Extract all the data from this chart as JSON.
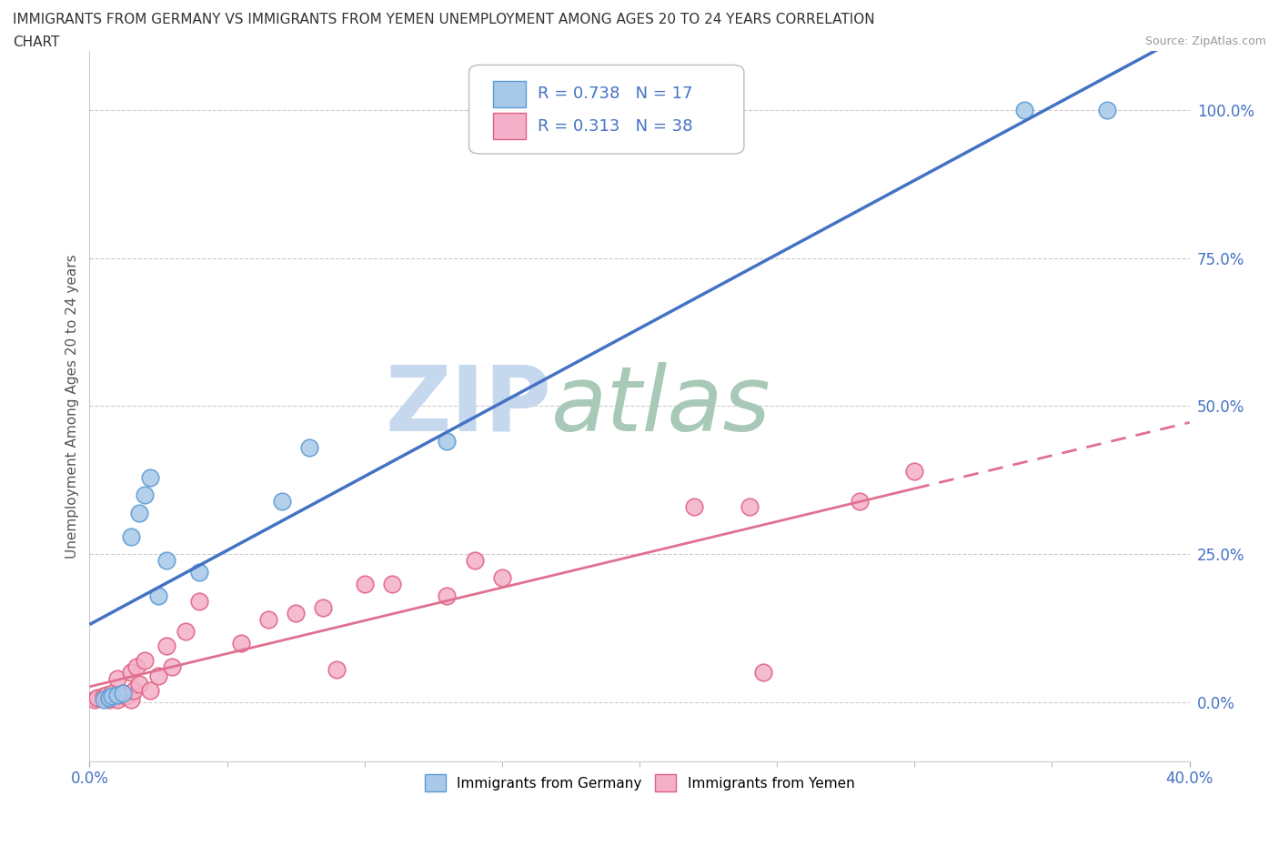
{
  "title_line1": "IMMIGRANTS FROM GERMANY VS IMMIGRANTS FROM YEMEN UNEMPLOYMENT AMONG AGES 20 TO 24 YEARS CORRELATION",
  "title_line2": "CHART",
  "source": "Source: ZipAtlas.com",
  "ylabel": "Unemployment Among Ages 20 to 24 years",
  "xlim": [
    0.0,
    0.4
  ],
  "ylim": [
    -0.1,
    1.1
  ],
  "yticks": [
    0.0,
    0.25,
    0.5,
    0.75,
    1.0
  ],
  "ytick_labels": [
    "0.0%",
    "25.0%",
    "50.0%",
    "75.0%",
    "100.0%"
  ],
  "xtick_left_label": "0.0%",
  "xtick_right_label": "40.0%",
  "germany_face_color": "#a8c8e8",
  "germany_edge_color": "#5b9bd5",
  "yemen_face_color": "#f4b0c8",
  "yemen_edge_color": "#e06080",
  "germany_line_color": "#4472c4",
  "yemen_line_color": "#e07090",
  "germany_R": 0.738,
  "germany_N": 17,
  "yemen_R": 0.313,
  "yemen_N": 38,
  "germany_scatter_x": [
    0.005,
    0.007,
    0.008,
    0.01,
    0.012,
    0.015,
    0.018,
    0.02,
    0.022,
    0.025,
    0.028,
    0.04,
    0.07,
    0.08,
    0.13,
    0.34,
    0.37
  ],
  "germany_scatter_y": [
    0.005,
    0.008,
    0.01,
    0.012,
    0.015,
    0.28,
    0.32,
    0.35,
    0.38,
    0.18,
    0.24,
    0.22,
    0.34,
    0.43,
    0.44,
    1.0,
    1.0
  ],
  "yemen_scatter_x": [
    0.002,
    0.003,
    0.005,
    0.006,
    0.007,
    0.008,
    0.009,
    0.01,
    0.01,
    0.012,
    0.013,
    0.015,
    0.015,
    0.016,
    0.017,
    0.018,
    0.02,
    0.022,
    0.025,
    0.028,
    0.03,
    0.035,
    0.04,
    0.055,
    0.065,
    0.075,
    0.085,
    0.09,
    0.1,
    0.11,
    0.13,
    0.14,
    0.15,
    0.22,
    0.24,
    0.245,
    0.28,
    0.3
  ],
  "yemen_scatter_y": [
    0.005,
    0.008,
    0.01,
    0.012,
    0.005,
    0.015,
    0.008,
    0.04,
    0.005,
    0.015,
    0.01,
    0.05,
    0.005,
    0.02,
    0.06,
    0.03,
    0.07,
    0.02,
    0.045,
    0.095,
    0.06,
    0.12,
    0.17,
    0.1,
    0.14,
    0.15,
    0.16,
    0.055,
    0.2,
    0.2,
    0.18,
    0.24,
    0.21,
    0.33,
    0.33,
    0.05,
    0.34,
    0.39
  ],
  "watermark_zip": "ZIP",
  "watermark_atlas": "atlas",
  "watermark_color_zip": "#c5d8ee",
  "watermark_color_atlas": "#a8c8b8",
  "background_color": "#ffffff",
  "legend_label_germany": "Immigrants from Germany",
  "legend_label_yemen": "Immigrants from Yemen",
  "tick_color": "#4472c4",
  "grid_color": "#cccccc"
}
